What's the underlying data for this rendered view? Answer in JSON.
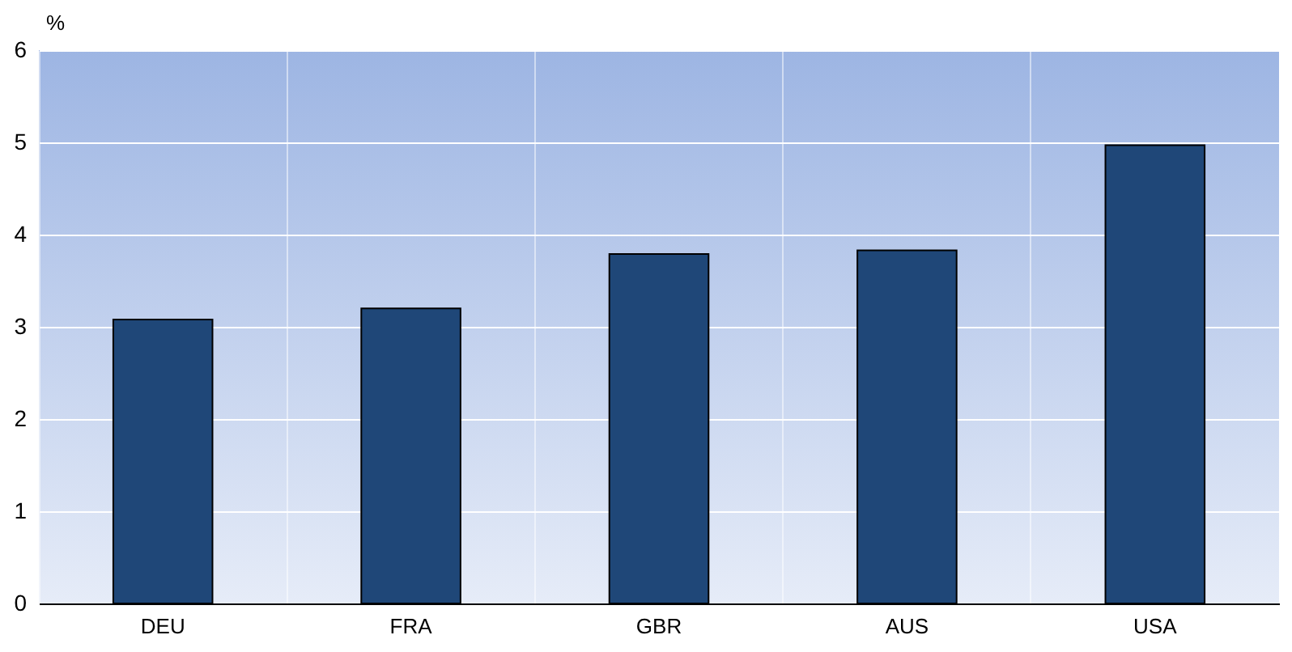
{
  "chart_data": {
    "type": "bar",
    "ylabel": "%",
    "categories": [
      "DEU",
      "FRA",
      "GBR",
      "AUS",
      "USA"
    ],
    "values": [
      3.08,
      3.2,
      3.79,
      3.83,
      4.97
    ],
    "color": "#1f4778",
    "ylim": [
      0,
      6
    ],
    "yticks": [
      0,
      1,
      2,
      3,
      4,
      5,
      6
    ],
    "grid": true
  }
}
